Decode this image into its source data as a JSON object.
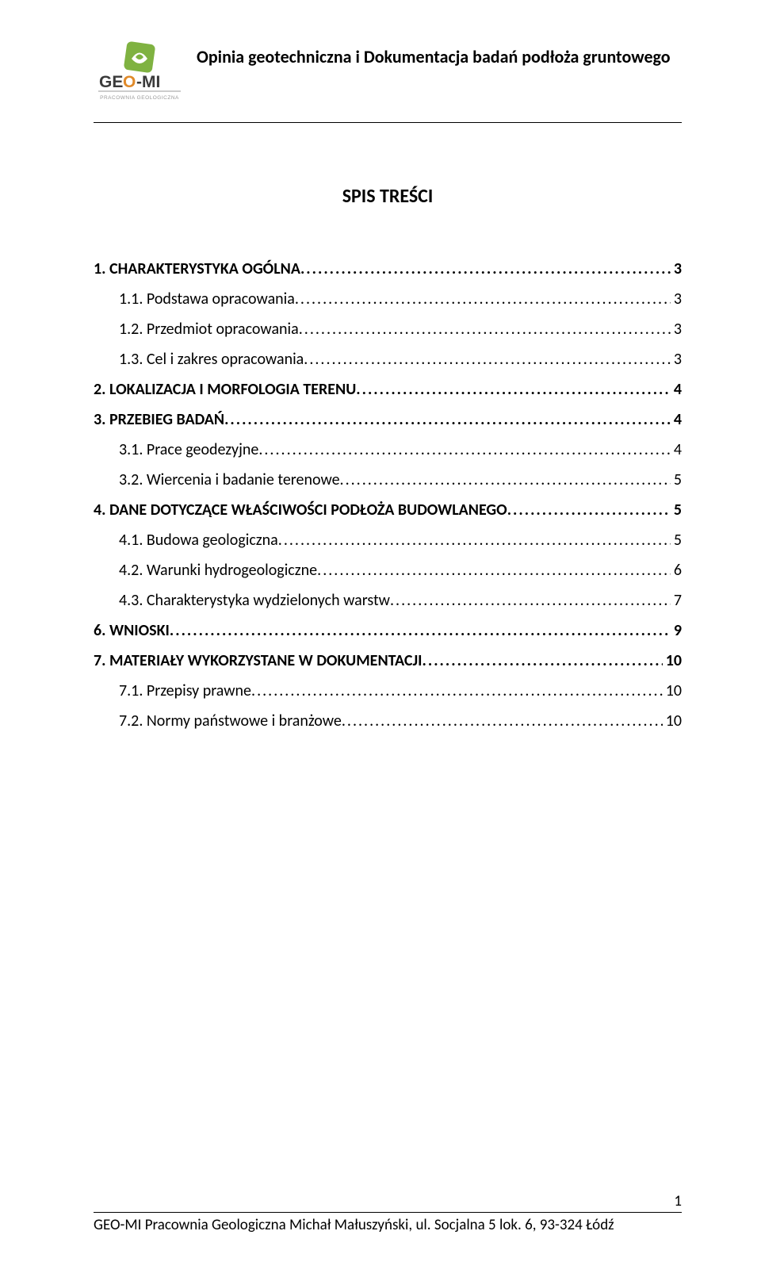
{
  "header": {
    "title": "Opinia geotechniczna i Dokumentacja badań podłoża gruntowego",
    "logo_text_main": "GEO-MI",
    "logo_text_sub": "PRACOWNIA GEOLOGICZNA",
    "logo_colors": {
      "green": "#7fb241",
      "dark": "#3b3b3b",
      "orange": "#e08a2a",
      "sub": "#9a9a9a"
    }
  },
  "toc_title": "SPIS TREŚCI",
  "toc": [
    {
      "label": "1. CHARAKTERYSTYKA OGÓLNA",
      "page": "3",
      "bold": true,
      "indent": 0
    },
    {
      "label": "1.1. Podstawa opracowania",
      "page": "3",
      "bold": false,
      "indent": 1
    },
    {
      "label": "1.2. Przedmiot opracowania",
      "page": "3",
      "bold": false,
      "indent": 1
    },
    {
      "label": "1.3. Cel i zakres opracowania",
      "page": "3",
      "bold": false,
      "indent": 1
    },
    {
      "label": "2. LOKALIZACJA I MORFOLOGIA TERENU",
      "page": "4",
      "bold": true,
      "indent": 0
    },
    {
      "label": "3. PRZEBIEG BADAŃ",
      "page": "4",
      "bold": true,
      "indent": 0
    },
    {
      "label": "3.1. Prace geodezyjne",
      "page": "4",
      "bold": false,
      "indent": 1
    },
    {
      "label": "3.2. Wiercenia i badanie terenowe",
      "page": "5",
      "bold": false,
      "indent": 1
    },
    {
      "label": "4. DANE DOTYCZĄCE WŁAŚCIWOŚCI PODŁOŻA BUDOWLANEGO",
      "page": "5",
      "bold": true,
      "indent": 0
    },
    {
      "label": "4.1. Budowa geologiczna",
      "page": "5",
      "bold": false,
      "indent": 1
    },
    {
      "label": "4.2. Warunki hydrogeologiczne",
      "page": "6",
      "bold": false,
      "indent": 1
    },
    {
      "label": "4.3. Charakterystyka wydzielonych warstw",
      "page": "7",
      "bold": false,
      "indent": 1
    },
    {
      "label": "6. WNIOSKI",
      "page": "9",
      "bold": true,
      "indent": 0
    },
    {
      "label": "7. MATERIAŁY WYKORZYSTANE W DOKUMENTACJI",
      "page": "10",
      "bold": true,
      "indent": 0
    },
    {
      "label": "7.1. Przepisy prawne",
      "page": "10",
      "bold": false,
      "indent": 1
    },
    {
      "label": "7.2. Normy państwowe i branżowe",
      "page": "10",
      "bold": false,
      "indent": 1
    }
  ],
  "footer": {
    "text": "GEO-MI Pracownia Geologiczna Michał Małuszyński, ul. Socjalna 5 lok. 6, 93-324 Łódź",
    "page_number": "1"
  }
}
